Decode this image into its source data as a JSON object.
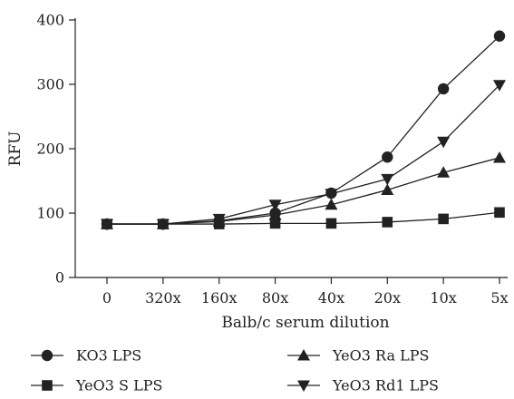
{
  "chart_data": {
    "type": "line",
    "categories": [
      "0",
      "320x",
      "160x",
      "80x",
      "40x",
      "20x",
      "10x",
      "5x"
    ],
    "xlabel": "Balb/c serum dilution",
    "ylabel": "RFU",
    "ylim": [
      0,
      400
    ],
    "yticks": [
      0,
      100,
      200,
      300,
      400
    ],
    "grid": false,
    "legend_position": "bottom",
    "series": [
      {
        "name": "KO3 LPS",
        "marker": "circle",
        "values": [
          83,
          83,
          88,
          100,
          131,
          187,
          293,
          375
        ]
      },
      {
        "name": "YeO3 S LPS",
        "marker": "square",
        "values": [
          83,
          83,
          83,
          84,
          84,
          86,
          91,
          101
        ]
      },
      {
        "name": "YeO3 Ra LPS",
        "marker": "triangle-up",
        "values": [
          83,
          83,
          87,
          97,
          113,
          136,
          163,
          186
        ]
      },
      {
        "name": "YeO3 Rd1 LPS",
        "marker": "triangle-down",
        "values": [
          83,
          83,
          91,
          113,
          130,
          153,
          211,
          299
        ]
      }
    ]
  }
}
